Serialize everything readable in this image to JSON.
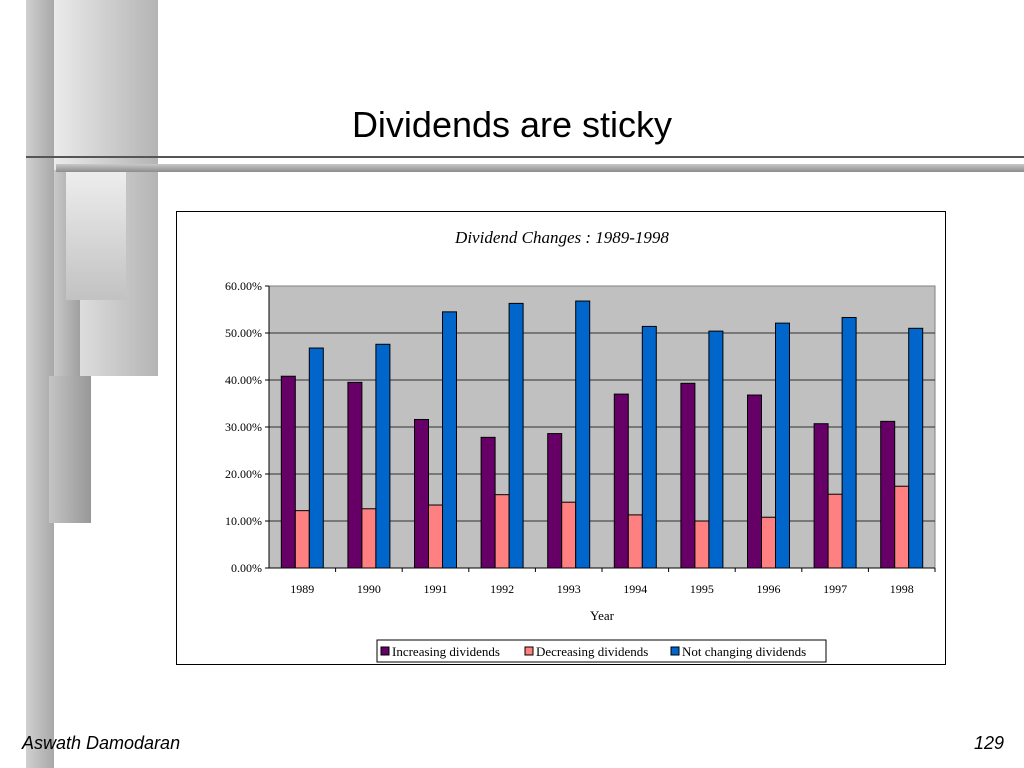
{
  "slide": {
    "title": "Dividends are sticky",
    "footer_left": "Aswath Damodaran",
    "footer_right": "129"
  },
  "colors": {
    "increasing": "#660066",
    "decreasing": "#FF8080",
    "not_changing": "#0066CC",
    "plot_background": "#C0C0C0"
  },
  "chart_data": {
    "type": "bar",
    "title": "Dividend Changes : 1989-1998",
    "xlabel": "Year",
    "ylabel": "",
    "categories": [
      "1989",
      "1990",
      "1991",
      "1992",
      "1993",
      "1994",
      "1995",
      "1996",
      "1997",
      "1998"
    ],
    "series": [
      {
        "name": "Increasing dividends",
        "values": [
          40.8,
          39.5,
          31.6,
          27.8,
          28.6,
          37.0,
          39.3,
          36.8,
          30.7,
          31.2
        ]
      },
      {
        "name": "Decreasing dividends",
        "values": [
          12.2,
          12.6,
          13.4,
          15.6,
          14.0,
          11.3,
          10.0,
          10.8,
          15.7,
          17.4
        ]
      },
      {
        "name": "Not changing dividends",
        "values": [
          46.8,
          47.6,
          54.5,
          56.3,
          56.8,
          51.4,
          50.4,
          52.1,
          53.3,
          51.0
        ]
      }
    ],
    "ylim": [
      0,
      60
    ],
    "yticks": [
      "0.00%",
      "10.00%",
      "20.00%",
      "30.00%",
      "40.00%",
      "50.00%",
      "60.00%"
    ],
    "grid": true,
    "legend_position": "bottom"
  }
}
